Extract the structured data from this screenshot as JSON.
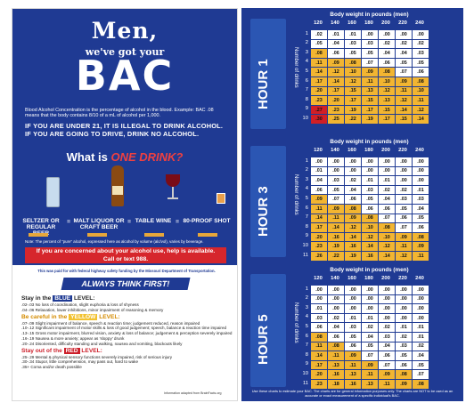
{
  "left": {
    "title_men": "Men,",
    "subtitle": "we've got your",
    "title_bac": "BAC",
    "definition": "Blood Alcohol Concentration is the percentage of alcohol in the blood. Example: BAC .08 means that the body contains 8/10 of a mL of alcohol per 1,000.",
    "warning_line1": "IF YOU ARE UNDER 21, IT IS ILLEGAL TO DRINK ALCOHOL.",
    "warning_line2": "IF YOU ARE GOING TO DRIVE, DRINK NO ALCOHOL.",
    "what_is": "What is",
    "one_drink": "ONE DRINK?",
    "drinks": [
      "SELTZER OR REGULAR BEER",
      "MALT LIQUOR OR CRAFT BEER",
      "TABLE WINE",
      "80-PROOF SHOT"
    ],
    "equals": "=",
    "note": "Note: The percent of \"pure\" alcohol, expressed here as alcohol by volume (alc/vol), varies by beverage.",
    "concern_line1": "If you are concerned about your alcohol use, help is available.",
    "concern_line2": "Call or text 988.",
    "funded": "This was paid for with federal highway safety funding by the Missouri Department of Transportation.",
    "always": "ALWAYS THINK FIRST!",
    "stay_blue_pre": "Stay in the",
    "stay_blue_hl": "BLUE",
    "stay_blue_post": "LEVEL:",
    "blue_items": [
      ".02-.03 No loss of coordination, slight euphoria & loss of shyness",
      ".04-.06 Relaxation, lower inhibitions, minor impairment of reasoning & memory"
    ],
    "careful_pre": "Be careful in the",
    "careful_hl": "YELLOW",
    "careful_post": "LEVEL:",
    "yellow_items": [
      ".07-.09 Slight impairment of balance, speech & reaction time; judgement reduced, reason impaired",
      ".10-.12 Significant impairment of motor skills & loss of good judgement; speech, balance & reaction time impaired",
      ".13-.15 Gross motor impairment, blurred vision, anxiety & loss of balance; judgement & perception severely impaired",
      ".16-.19 Nausea & more anxiety; appear as 'sloppy' drunk",
      ".20-.24 Disoriented, difficulty standing and walking, nausea and vomiting, blackouts likely"
    ],
    "stay_red_pre": "Stay out of the",
    "stay_red_hl": "RED",
    "stay_red_post": "LEVEL:",
    "red_items": [
      ".25-.29 Mental & physical sensory functions severely impaired, risk of serious injury",
      ".30-.34 Stupor, little comprehension, may pass out, hard to wake",
      ".35+ Coma and/or death possible"
    ],
    "source": "Information adapted from BrainFacts.org"
  },
  "right": {
    "body_weight_title": "Body weight in pounds (men)",
    "weights": [
      "120",
      "140",
      "160",
      "180",
      "200",
      "220",
      "240"
    ],
    "number_of_drinks": "Number of drinks",
    "footnote": "Use these charts to estimate your BAC. The charts are for general information purposes only. The charts are NOT to be used as an accurate or exact measurement of a specific individual's BAC.",
    "sections": [
      {
        "hour": "HOUR 1",
        "rows": [
          [
            ".02",
            ".01",
            ".01",
            ".00",
            ".00",
            ".00",
            ".00"
          ],
          [
            ".05",
            ".04",
            ".03",
            ".03",
            ".02",
            ".02",
            ".02"
          ],
          [
            ".08",
            ".06",
            ".05",
            ".05",
            ".04",
            ".04",
            ".03"
          ],
          [
            ".11",
            ".09",
            ".08",
            ".07",
            ".06",
            ".05",
            ".05"
          ],
          [
            ".14",
            ".12",
            ".10",
            ".09",
            ".08",
            ".07",
            ".06"
          ],
          [
            ".17",
            ".14",
            ".12",
            ".11",
            ".10",
            ".09",
            ".08"
          ],
          [
            ".20",
            ".17",
            ".15",
            ".13",
            ".12",
            ".11",
            ".10"
          ],
          [
            ".23",
            ".20",
            ".17",
            ".15",
            ".13",
            ".12",
            ".11"
          ],
          [
            ".27",
            ".23",
            ".19",
            ".17",
            ".15",
            ".14",
            ".12"
          ],
          [
            ".30",
            ".25",
            ".22",
            ".19",
            ".17",
            ".15",
            ".14"
          ]
        ]
      },
      {
        "hour": "HOUR 3",
        "rows": [
          [
            ".00",
            ".00",
            ".00",
            ".00",
            ".00",
            ".00",
            ".00"
          ],
          [
            ".01",
            ".00",
            ".00",
            ".00",
            ".00",
            ".00",
            ".00"
          ],
          [
            ".04",
            ".03",
            ".02",
            ".01",
            ".01",
            ".00",
            ".00"
          ],
          [
            ".06",
            ".05",
            ".04",
            ".03",
            ".02",
            ".02",
            ".01"
          ],
          [
            ".09",
            ".07",
            ".06",
            ".05",
            ".04",
            ".03",
            ".03"
          ],
          [
            ".11",
            ".09",
            ".08",
            ".06",
            ".06",
            ".05",
            ".04"
          ],
          [
            ".14",
            ".11",
            ".09",
            ".08",
            ".07",
            ".06",
            ".05"
          ],
          [
            ".17",
            ".14",
            ".12",
            ".10",
            ".08",
            ".07",
            ".06"
          ],
          [
            ".20",
            ".16",
            ".14",
            ".12",
            ".10",
            ".09",
            ".08"
          ],
          [
            ".23",
            ".19",
            ".16",
            ".14",
            ".12",
            ".11",
            ".09"
          ],
          [
            ".26",
            ".22",
            ".19",
            ".16",
            ".14",
            ".12",
            ".11"
          ]
        ]
      },
      {
        "hour": "HOUR 5",
        "rows": [
          [
            ".00",
            ".00",
            ".00",
            ".00",
            ".00",
            ".00",
            ".00"
          ],
          [
            ".00",
            ".00",
            ".00",
            ".00",
            ".00",
            ".00",
            ".00"
          ],
          [
            ".01",
            ".00",
            ".00",
            ".00",
            ".00",
            ".00",
            ".00"
          ],
          [
            ".03",
            ".02",
            ".01",
            ".01",
            ".00",
            ".00",
            ".00"
          ],
          [
            ".06",
            ".04",
            ".03",
            ".02",
            ".02",
            ".01",
            ".01"
          ],
          [
            ".08",
            ".06",
            ".05",
            ".04",
            ".03",
            ".02",
            ".01"
          ],
          [
            ".11",
            ".08",
            ".06",
            ".05",
            ".04",
            ".03",
            ".02"
          ],
          [
            ".14",
            ".11",
            ".09",
            ".07",
            ".06",
            ".05",
            ".04"
          ],
          [
            ".17",
            ".13",
            ".11",
            ".09",
            ".07",
            ".06",
            ".05"
          ],
          [
            ".20",
            ".16",
            ".13",
            ".11",
            ".09",
            ".08",
            ".07"
          ],
          [
            ".23",
            ".18",
            ".16",
            ".13",
            ".11",
            ".09",
            ".08"
          ]
        ]
      }
    ]
  },
  "colors": {
    "navy": "#1f3a93",
    "yellow": "#f2b531",
    "red": "#d11f26",
    "white": "#ffffff"
  }
}
